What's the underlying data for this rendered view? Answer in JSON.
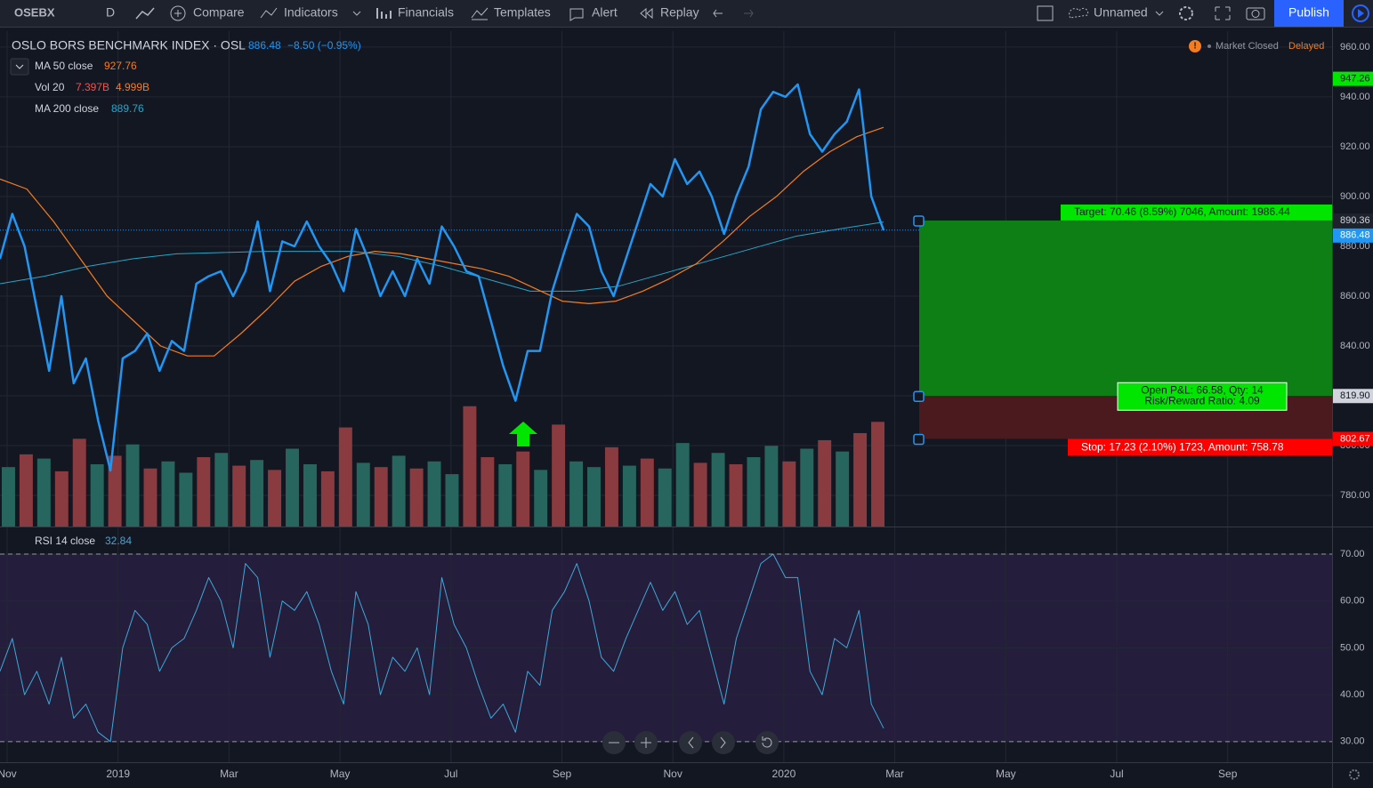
{
  "toolbar": {
    "symbol": "OSEBX",
    "interval": "D",
    "items": [
      "Compare",
      "Indicators",
      "Financials",
      "Templates",
      "Alert",
      "Replay"
    ],
    "layout_name": "Unnamed",
    "publish": "Publish"
  },
  "status": {
    "market": "Market Closed",
    "delay": "Delayed"
  },
  "chart_data": [
    {
      "type": "line",
      "title": "OSLO BORS BENCHMARK INDEX · OSL",
      "change": "−8.50 (−0.95%)",
      "ylim": [
        767.5,
        966.4
      ],
      "yticks": [
        {
          "value": 960,
          "label": "960.00"
        },
        {
          "value": 940,
          "label": "940.00"
        },
        {
          "value": 920,
          "label": "920.00"
        },
        {
          "value": 900,
          "label": "900.00"
        },
        {
          "value": 880,
          "label": "880.00"
        },
        {
          "value": 860,
          "label": "860.00"
        },
        {
          "value": 840,
          "label": "840.00"
        },
        {
          "value": 820,
          "label": "820.00"
        },
        {
          "value": 800,
          "label": "800.00"
        },
        {
          "value": 780,
          "label": "780.00"
        }
      ],
      "xticks": [
        "Nov",
        "2019",
        "Mar",
        "May",
        "Jul",
        "Sep",
        "Nov",
        "2020",
        "Mar",
        "May",
        "Jul",
        "Sep"
      ],
      "grid": true,
      "series": [
        {
          "name": "OSLO BORS BENCHMARK INDEX",
          "color": "#2196f3",
          "values": [
            875,
            893,
            880,
            855,
            830,
            860,
            825,
            835,
            810,
            790,
            835,
            838,
            845,
            830,
            842,
            838,
            865,
            868,
            870,
            860,
            870,
            890,
            862,
            882,
            880,
            890,
            880,
            873,
            862,
            887,
            875,
            860,
            870,
            860,
            875,
            865,
            888,
            880,
            870,
            868,
            850,
            832,
            818,
            838,
            838,
            862,
            878,
            893,
            888,
            870,
            860,
            875,
            890,
            905,
            900,
            915,
            905,
            910,
            900,
            885,
            900,
            912,
            935,
            942,
            940,
            945,
            925,
            918,
            925,
            930,
            943,
            900,
            886.48
          ]
        },
        {
          "name": "MA 50 close",
          "color": "#f57c1f",
          "values": [
            907,
            903,
            890,
            875,
            860,
            850,
            840,
            836,
            836,
            845,
            855,
            866,
            872,
            876,
            878,
            877,
            875,
            873,
            871,
            868,
            863,
            858,
            857,
            858,
            862,
            867,
            873,
            882,
            892,
            900,
            910,
            918,
            924,
            927.76
          ]
        },
        {
          "name": "MA 200 close",
          "color": "#26a6c9",
          "values": [
            865,
            868,
            872,
            875,
            877,
            877.5,
            878,
            878,
            878,
            876,
            872,
            867,
            862,
            862,
            864,
            869,
            874,
            879,
            884,
            887,
            889.76
          ]
        }
      ],
      "volume": {
        "name": "Vol 20",
        "ylim": [
          0,
          35
        ],
        "last_label": "7.397B",
        "ma": 4.999,
        "ma_label": "4.999B",
        "values": [
          4.2,
          5.1,
          4.8,
          3.9,
          6.2,
          4.4,
          5.0,
          5.8,
          4.1,
          4.6,
          3.8,
          4.9,
          5.2,
          4.3,
          4.7,
          4.0,
          5.5,
          4.4,
          3.9,
          7.0,
          4.5,
          4.2,
          5.0,
          4.1,
          4.6,
          3.7,
          8.5,
          4.9,
          4.4,
          5.3,
          4.0,
          7.2,
          4.6,
          4.2,
          5.6,
          4.3,
          4.8,
          4.1,
          5.9,
          4.5,
          5.2,
          4.4,
          4.9,
          5.7,
          4.6,
          5.5,
          6.1,
          5.3,
          6.6,
          7.397
        ],
        "colors": [
          "#26665e",
          "#8a3b3f",
          "#26665e",
          "#8a3b3f",
          "#8a3b3f",
          "#26665e",
          "#8a3b3f",
          "#26665e",
          "#8a3b3f",
          "#26665e",
          "#26665e",
          "#8a3b3f",
          "#26665e",
          "#8a3b3f",
          "#26665e",
          "#8a3b3f",
          "#26665e",
          "#26665e",
          "#8a3b3f",
          "#8a3b3f",
          "#26665e",
          "#8a3b3f",
          "#26665e",
          "#8a3b3f",
          "#26665e",
          "#26665e",
          "#8a3b3f",
          "#8a3b3f",
          "#26665e",
          "#8a3b3f",
          "#26665e",
          "#8a3b3f",
          "#26665e",
          "#26665e",
          "#8a3b3f",
          "#26665e",
          "#8a3b3f",
          "#26665e",
          "#26665e",
          "#8a3b3f",
          "#26665e",
          "#8a3b3f",
          "#26665e",
          "#26665e",
          "#8a3b3f",
          "#26665e",
          "#8a3b3f",
          "#26665e",
          "#8a3b3f",
          "#8a3b3f"
        ]
      },
      "alert": 947.26,
      "position": {
        "target": 890.36,
        "entry": {
          "value": 819.9,
          "label": "819.90"
        },
        "stop": 802.67,
        "target_text": "Target: 70.46 (8.59%) 7046, Amount: 1986.44",
        "pnl_text": "Open P&L: 66.58, Qty: 14",
        "rr_text": "Risk/Reward Ratio: 4.09",
        "stop_text": "Stop: 17.23 (2.10%) 1723, Amount: 758.78"
      }
    },
    {
      "type": "line",
      "title": "RSI 14 close",
      "ylim": [
        25.6,
        75.7
      ],
      "yticks": [
        {
          "value": 70,
          "label": "70.00"
        },
        {
          "value": 60,
          "label": "60.00"
        },
        {
          "value": 50,
          "label": "50.00"
        },
        {
          "value": 40,
          "label": "40.00"
        },
        {
          "value": 30,
          "label": "30.00"
        }
      ],
      "bands": [
        70,
        30
      ],
      "series": [
        {
          "name": "RSI 14 close",
          "color": "#3ea8d8",
          "values": [
            45,
            52,
            40,
            45,
            38,
            48,
            35,
            38,
            32,
            30,
            50,
            58,
            55,
            45,
            50,
            52,
            58,
            65,
            60,
            50,
            68,
            65,
            48,
            60,
            58,
            62,
            55,
            45,
            38,
            62,
            55,
            40,
            48,
            45,
            50,
            40,
            65,
            55,
            50,
            42,
            35,
            38,
            32,
            45,
            42,
            58,
            62,
            68,
            60,
            48,
            45,
            52,
            58,
            64,
            58,
            62,
            55,
            58,
            48,
            38,
            52,
            60,
            68,
            70,
            65,
            65,
            45,
            40,
            52,
            50,
            58,
            38,
            32.84
          ]
        }
      ]
    }
  ]
}
